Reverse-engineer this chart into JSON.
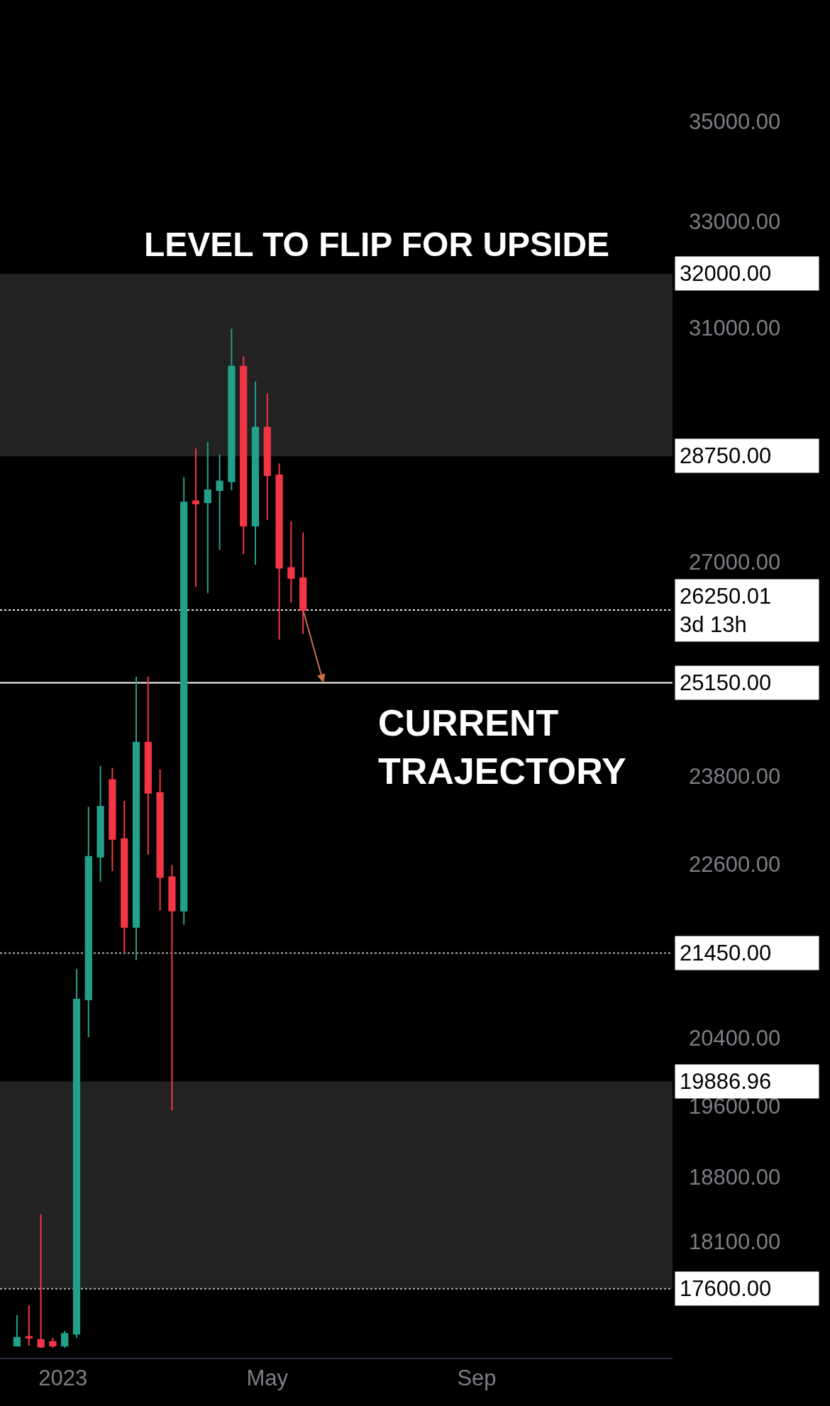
{
  "chart_data": {
    "type": "candlestick",
    "x": [
      "2022-12-05",
      "2022-12-12",
      "2022-12-19",
      "2022-12-26",
      "2023-01-02",
      "2023-01-09",
      "2023-01-16",
      "2023-01-23",
      "2023-01-30",
      "2023-02-06",
      "2023-02-13",
      "2023-02-20",
      "2023-02-27",
      "2023-03-06",
      "2023-03-13",
      "2023-03-20",
      "2023-03-27",
      "2023-04-03",
      "2023-04-10",
      "2023-04-17",
      "2023-04-24",
      "2023-05-01",
      "2023-05-08",
      "2023-05-15",
      "2023-05-22"
    ],
    "ohlc": [
      [
        17020,
        17330,
        17020,
        17100
      ],
      [
        17110,
        17430,
        17020,
        17100
      ],
      [
        17080,
        18390,
        17000,
        17010
      ],
      [
        17060,
        17100,
        17000,
        17020
      ],
      [
        17020,
        17170,
        17000,
        17140
      ],
      [
        17140,
        21250,
        17100,
        20870
      ],
      [
        20870,
        23380,
        20410,
        22700
      ],
      [
        22700,
        23950,
        22370,
        23380
      ],
      [
        23750,
        23920,
        22510,
        22940
      ],
      [
        22940,
        23460,
        21460,
        21780
      ],
      [
        21780,
        25240,
        21360,
        24280
      ],
      [
        24280,
        25240,
        22730,
        23570
      ],
      [
        23570,
        23900,
        21990,
        22430
      ],
      [
        22430,
        22590,
        19550,
        21990
      ],
      [
        21990,
        28390,
        21810,
        27970
      ],
      [
        27990,
        28870,
        26610,
        27950
      ],
      [
        27970,
        28980,
        26510,
        28170
      ],
      [
        28170,
        28770,
        27200,
        28320
      ],
      [
        28320,
        30980,
        28170,
        30300
      ],
      [
        30300,
        30480,
        27130,
        27590
      ],
      [
        27590,
        30030,
        26960,
        29230
      ],
      [
        29230,
        29820,
        27680,
        28420
      ],
      [
        28420,
        28620,
        25800,
        26910
      ],
      [
        26910,
        27660,
        26370,
        26750
      ],
      [
        26750,
        27480,
        25880,
        26250.01
      ]
    ],
    "colors": [
      "#22a08a",
      "#f23645",
      "#f23645",
      "#f23645",
      "#22a08a",
      "#22a08a",
      "#22a08a",
      "#22a08a",
      "#f23645",
      "#f23645",
      "#22a08a",
      "#f23645",
      "#f23645",
      "#f23645",
      "#22a08a",
      "#f23645",
      "#22a08a",
      "#22a08a",
      "#22a08a",
      "#f23645",
      "#22a08a",
      "#f23645",
      "#f23645",
      "#f23645",
      "#f23645"
    ],
    "log": true,
    "ylim": [
      16900,
      37600
    ],
    "yticks": [
      {
        "value": 35000,
        "label": "35000.00"
      },
      {
        "value": 33000,
        "label": "33000.00"
      },
      {
        "value": 31000,
        "label": "31000.00"
      },
      {
        "value": 27000,
        "label": "27000.00"
      },
      {
        "value": 23800,
        "label": "23800.00"
      },
      {
        "value": 22600,
        "label": "22600.00"
      },
      {
        "value": 20400,
        "label": "20400.00"
      },
      {
        "value": 19600,
        "label": "19600.00"
      },
      {
        "value": 18800,
        "label": "18800.00"
      },
      {
        "value": 18100,
        "label": "18100.00"
      }
    ],
    "xlim": [
      "2022-11-25",
      "2023-12-25"
    ],
    "xticks": [
      {
        "value": "2023-01-01",
        "label": "2023"
      },
      {
        "value": "2023-05-01",
        "label": "May"
      },
      {
        "value": "2023-09-01",
        "label": "Sep"
      }
    ],
    "grid": false,
    "bands": [
      {
        "axis": "y",
        "from": 28750,
        "to": 32000,
        "label": "32000.00",
        "color": "#222222"
      },
      {
        "axis": "y",
        "from": 17600,
        "to": 19886.96,
        "label": "19886.96",
        "color": "#222222"
      }
    ],
    "ref_lines": [
      {
        "axis": "y",
        "value": 28750,
        "label": "28750.00",
        "color": "#222222",
        "line_style": "solid"
      },
      {
        "axis": "y",
        "value": 26250.01,
        "label": "26250.01\n3d 13h",
        "color": "#e6e6e6",
        "line_style": "dotted"
      },
      {
        "axis": "y",
        "value": 25150,
        "label": "25150.00",
        "color": "#ffffff",
        "line_style": "solid"
      },
      {
        "axis": "y",
        "value": 21450,
        "label": "21450.00",
        "color": "#b0b0b0",
        "line_style": "dotted"
      },
      {
        "axis": "y",
        "value": 17600,
        "label": "17600.00",
        "color": "#b0b0b0",
        "line_style": "dotted"
      }
    ],
    "annotations": [
      "LEVEL TO FLIP FOR UPSIDE",
      {
        "text": "CURRENT\nTRAJECTORY",
        "x": "2023-06-03",
        "y": 25150
      }
    ]
  }
}
